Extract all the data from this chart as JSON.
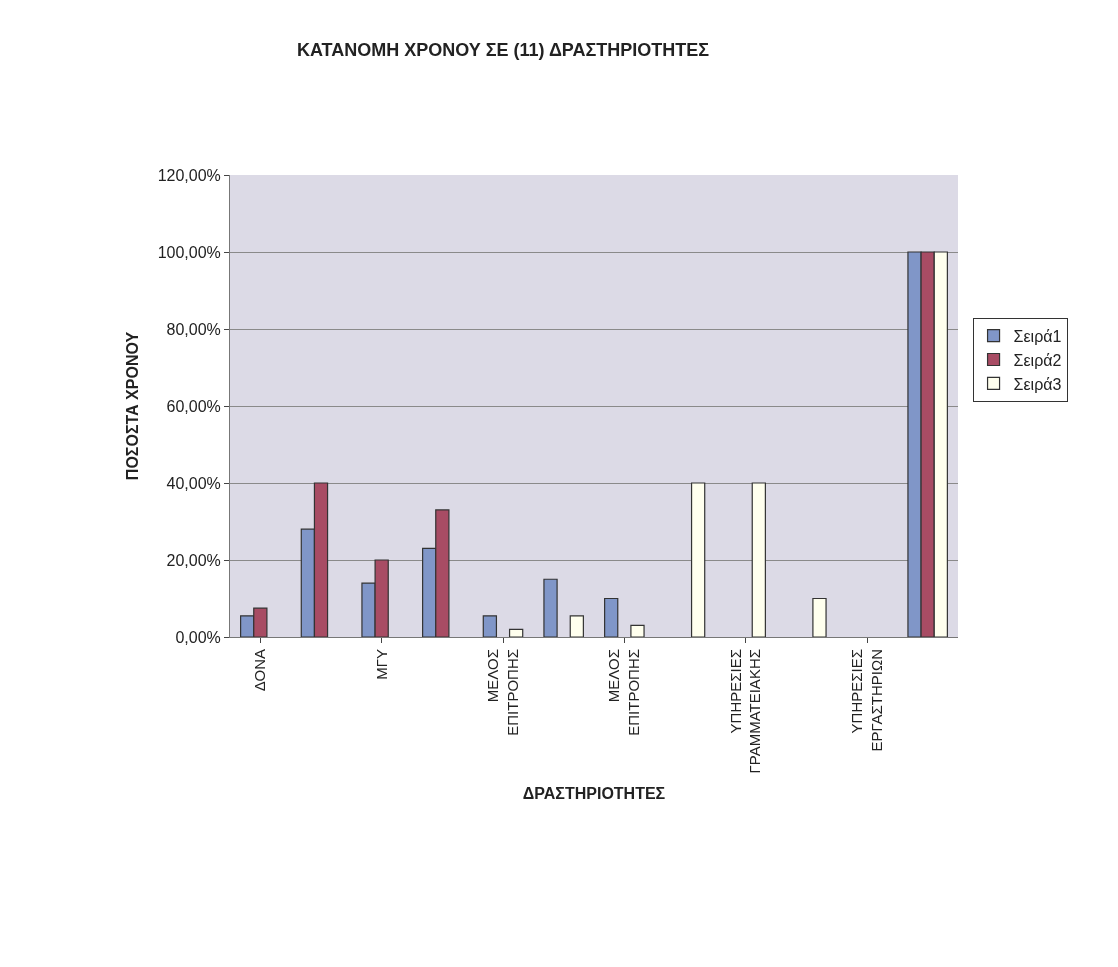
{
  "chart_data": {
    "type": "bar",
    "title": "ΚΑΤΑΝΟΜΗ ΧΡΟΝΟΥ ΣΕ (11) ΔΡΑΣΤΗΡΙΟΤΗΤΕΣ",
    "xlabel": "ΔΡΑΣΤΗΡΙΟΤΗΤΕΣ",
    "ylabel": "ΠΟΣΟΣΤΑ ΧΡΟΝΟΥ",
    "categories": [
      "ΔΟΝΑ",
      null,
      "ΜΓΥ",
      null,
      "ΜΕΛΟΣ ΕΠΙΤΡΟΠΗΣ",
      null,
      "ΜΕΛΟΣ ΕΠΙΤΡΟΠΗΣ",
      null,
      "ΥΠΗΡΕΣΙΕΣ ΓΡΑΜΜΑΤΕΙΑΚΗΣ",
      null,
      "ΥΠΗΡΕΣΙΕΣ ΕΡΓΑΣΤΗΡΙΩΝ",
      null
    ],
    "series": [
      {
        "name": "Σειρά1",
        "color": "#8096c8",
        "values": [
          5.5,
          28,
          14,
          23,
          5.5,
          15,
          10,
          null,
          null,
          null,
          null,
          100
        ]
      },
      {
        "name": "Σειρά2",
        "color": "#a84c64",
        "values": [
          7.5,
          40,
          20,
          33,
          null,
          null,
          null,
          null,
          null,
          null,
          null,
          100
        ]
      },
      {
        "name": "Σειρά3",
        "color": "#ffffee",
        "values": [
          null,
          null,
          null,
          null,
          2,
          5.5,
          3,
          40,
          40,
          10,
          null,
          100
        ]
      }
    ],
    "ylim": [
      0,
      120
    ],
    "yticks": [
      {
        "value": 0,
        "label": "0,00%"
      },
      {
        "value": 20,
        "label": "20,00%"
      },
      {
        "value": 40,
        "label": "40,00%"
      },
      {
        "value": 60,
        "label": "60,00%"
      },
      {
        "value": 80,
        "label": "80,00%"
      },
      {
        "value": 100,
        "label": "100,00%"
      },
      {
        "value": 120,
        "label": "120,00%"
      }
    ],
    "grid": "y",
    "legend": "right"
  }
}
